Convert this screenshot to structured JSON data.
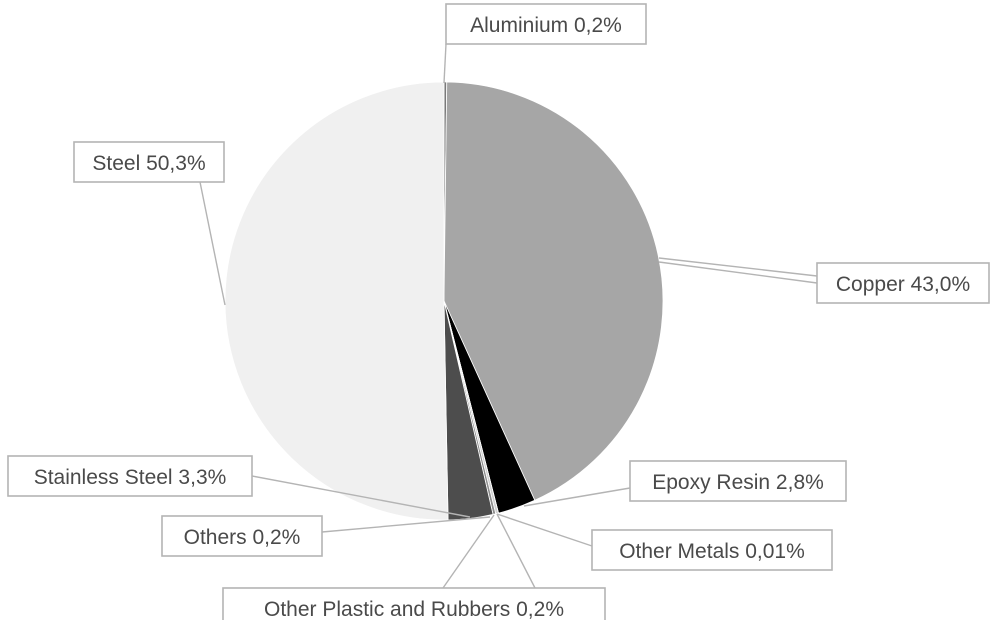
{
  "chart_data": {
    "type": "pie",
    "title": "",
    "slices": [
      {
        "label": "Aluminium 0,2%",
        "name": "Aluminium",
        "value": 0.2,
        "color": "#7a7a7a"
      },
      {
        "label": "Copper 43,0%",
        "name": "Copper",
        "value": 43.0,
        "color": "#a6a6a6"
      },
      {
        "label": "Epoxy Resin 2,8%",
        "name": "Epoxy Resin",
        "value": 2.8,
        "color": "#000000"
      },
      {
        "label": "Other Metals 0,01%",
        "name": "Other Metals",
        "value": 0.01,
        "color": "#2b2b2b"
      },
      {
        "label": "Other Plastic and Rubbers 0,2%",
        "name": "Other Plastic and Rubbers",
        "value": 0.2,
        "color": "#d0d0d0"
      },
      {
        "label": "Others 0,2%",
        "name": "Others",
        "value": 0.2,
        "color": "#8c8c8c"
      },
      {
        "label": "Stainless Steel 3,3%",
        "name": "Stainless Steel",
        "value": 3.3,
        "color": "#4d4d4d"
      },
      {
        "label": "Steel 50,3%",
        "name": "Steel",
        "value": 50.3,
        "color": "#f0f0f0"
      }
    ],
    "legend": "none",
    "data_labels": "outside-with-leader-lines"
  }
}
